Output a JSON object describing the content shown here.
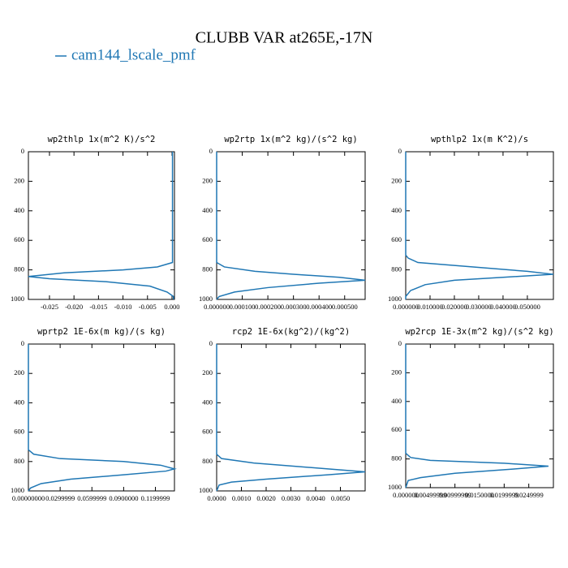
{
  "title": "CLUBB VAR at265E,-17N",
  "legend": {
    "name": "cam144_lscale_pmf",
    "color": "#1f77b4"
  },
  "chart_data": [
    {
      "type": "line",
      "title": "wp2thlp  1x(m^2 K)/s^2",
      "xlim": [
        -0.0293,
        0.0005
      ],
      "ylim": [
        1000,
        0
      ],
      "xticks": [
        -0.025,
        {
          "value": -0.02,
          "label": "-0.020"
        },
        -0.015,
        {
          "value": -0.01,
          "label": "-0.010"
        },
        -0.005,
        {
          "value": 0,
          "label": "0.000"
        }
      ],
      "yticks": [
        0,
        200,
        400,
        600,
        800,
        1000
      ],
      "series": [
        {
          "color": "#1f77b4",
          "x": [
            0.0001,
            0.0001,
            0.0001,
            -0.003,
            -0.01,
            -0.022,
            -0.0293,
            -0.025,
            -0.0135,
            -0.0045,
            -0.001,
            0.0003,
            0.0003
          ],
          "y": [
            0,
            400,
            750,
            780,
            800,
            820,
            845,
            860,
            880,
            910,
            950,
            980,
            1000
          ]
        }
      ]
    },
    {
      "type": "line",
      "title": "wp2rtp  1x(m^2 kg)/(s^2 kg)",
      "xlim": [
        0,
        0.00058
      ],
      "ylim": [
        1000,
        0
      ],
      "xticks": [
        {
          "value": 0,
          "label": "0.000000"
        },
        {
          "value": 0.0001,
          "label": "0.000100"
        },
        {
          "value": 0.0002,
          "label": "0.000200"
        },
        {
          "value": 0.0003,
          "label": "0.000300"
        },
        {
          "value": 0.0004,
          "label": "0.000400"
        },
        {
          "value": 0.0005,
          "label": "0.000500"
        }
      ],
      "yticks": [
        0,
        200,
        400,
        600,
        800,
        1000
      ],
      "series": [
        {
          "color": "#1f77b4",
          "x": [
            0,
            0,
            3e-05,
            0.00015,
            0.0003,
            0.00048,
            0.00058,
            0.0004,
            0.0002,
            7e-05,
            1e-05,
            0
          ],
          "y": [
            0,
            750,
            780,
            810,
            830,
            850,
            870,
            890,
            920,
            950,
            980,
            1000
          ]
        }
      ]
    },
    {
      "type": "line",
      "title": "wpthlp2  1x(m K^2)/s",
      "xlim": [
        0,
        0.0607
      ],
      "ylim": [
        1000,
        0
      ],
      "xticks": [
        {
          "value": 0,
          "label": "0.000000"
        },
        {
          "value": 0.01,
          "label": "0.010000"
        },
        {
          "value": 0.02,
          "label": "0.020000"
        },
        {
          "value": 0.03,
          "label": "0.030000"
        },
        {
          "value": 0.04,
          "label": "0.040000"
        },
        {
          "value": 0.05,
          "label": "0.050000"
        }
      ],
      "yticks": [
        0,
        200,
        400,
        600,
        800,
        1000
      ],
      "series": [
        {
          "color": "#1f77b4",
          "x": [
            0,
            0,
            0.001,
            0.005,
            0.035,
            0.05,
            0.0607,
            0.04,
            0.02,
            0.008,
            0.002,
            0,
            0
          ],
          "y": [
            0,
            700,
            720,
            750,
            790,
            810,
            830,
            850,
            870,
            900,
            940,
            980,
            1000
          ]
        }
      ]
    },
    {
      "type": "line",
      "title": "wprtp2  1E-6x(m kg)/(s kg)",
      "xlim": [
        0,
        0.138
      ],
      "ylim": [
        1000,
        0
      ],
      "xticks": [
        {
          "value": 0,
          "label": "0.00000000"
        },
        {
          "value": 0.03,
          "label": "0.0299999"
        },
        {
          "value": 0.06,
          "label": "0.0599999"
        },
        {
          "value": 0.09,
          "label": "0.0900000"
        },
        {
          "value": 0.12,
          "label": "0.1199999"
        }
      ],
      "yticks": [
        0,
        200,
        400,
        600,
        800,
        1000
      ],
      "series": [
        {
          "color": "#1f77b4",
          "x": [
            0,
            0,
            0.005,
            0.03,
            0.09,
            0.125,
            0.138,
            0.13,
            0.09,
            0.04,
            0.012,
            0.002,
            0
          ],
          "y": [
            0,
            720,
            750,
            780,
            800,
            825,
            850,
            865,
            890,
            920,
            950,
            980,
            1000
          ]
        }
      ]
    },
    {
      "type": "line",
      "title": "rcp2  1E-6x(kg^2)/(kg^2)",
      "xlim": [
        0,
        0.006
      ],
      "ylim": [
        1000,
        0
      ],
      "xticks": [
        {
          "value": 0,
          "label": "0.0000"
        },
        {
          "value": 0.001,
          "label": "0.0010"
        },
        {
          "value": 0.002,
          "label": "0.0020"
        },
        {
          "value": 0.003,
          "label": "0.0030"
        },
        {
          "value": 0.004,
          "label": "0.0040"
        },
        {
          "value": 0.005,
          "label": "0.0050"
        }
      ],
      "yticks": [
        0,
        200,
        400,
        600,
        800,
        1000
      ],
      "series": [
        {
          "color": "#1f77b4",
          "x": [
            0,
            0,
            0.0002,
            0.0015,
            0.0045,
            0.006,
            0.0045,
            0.002,
            0.0006,
            0.0001,
            0
          ],
          "y": [
            0,
            750,
            780,
            810,
            850,
            870,
            890,
            920,
            940,
            960,
            1000
          ]
        }
      ]
    },
    {
      "type": "line",
      "title": "wp2rcp  1E-3x(m^2 kg)/(s^2 kg)",
      "xlim": [
        0,
        0.03
      ],
      "ylim": [
        1000,
        0
      ],
      "xticks": [
        {
          "value": 0,
          "label": "0.000000"
        },
        {
          "value": 0.005,
          "label": "0.00499999"
        },
        {
          "value": 0.01,
          "label": "0.00999999"
        },
        {
          "value": 0.015,
          "label": "0.0150000"
        },
        {
          "value": 0.02,
          "label": "0.0199999"
        },
        {
          "value": 0.025,
          "label": "0.0249999"
        }
      ],
      "yticks": [
        0,
        200,
        400,
        600,
        800,
        1000
      ],
      "series": [
        {
          "color": "#1f77b4",
          "x": [
            0,
            0,
            0.001,
            0.005,
            0.02,
            0.029,
            0.022,
            0.01,
            0.003,
            0.0005,
            0
          ],
          "y": [
            0,
            760,
            790,
            810,
            830,
            850,
            870,
            900,
            930,
            950,
            1000
          ]
        }
      ]
    }
  ]
}
